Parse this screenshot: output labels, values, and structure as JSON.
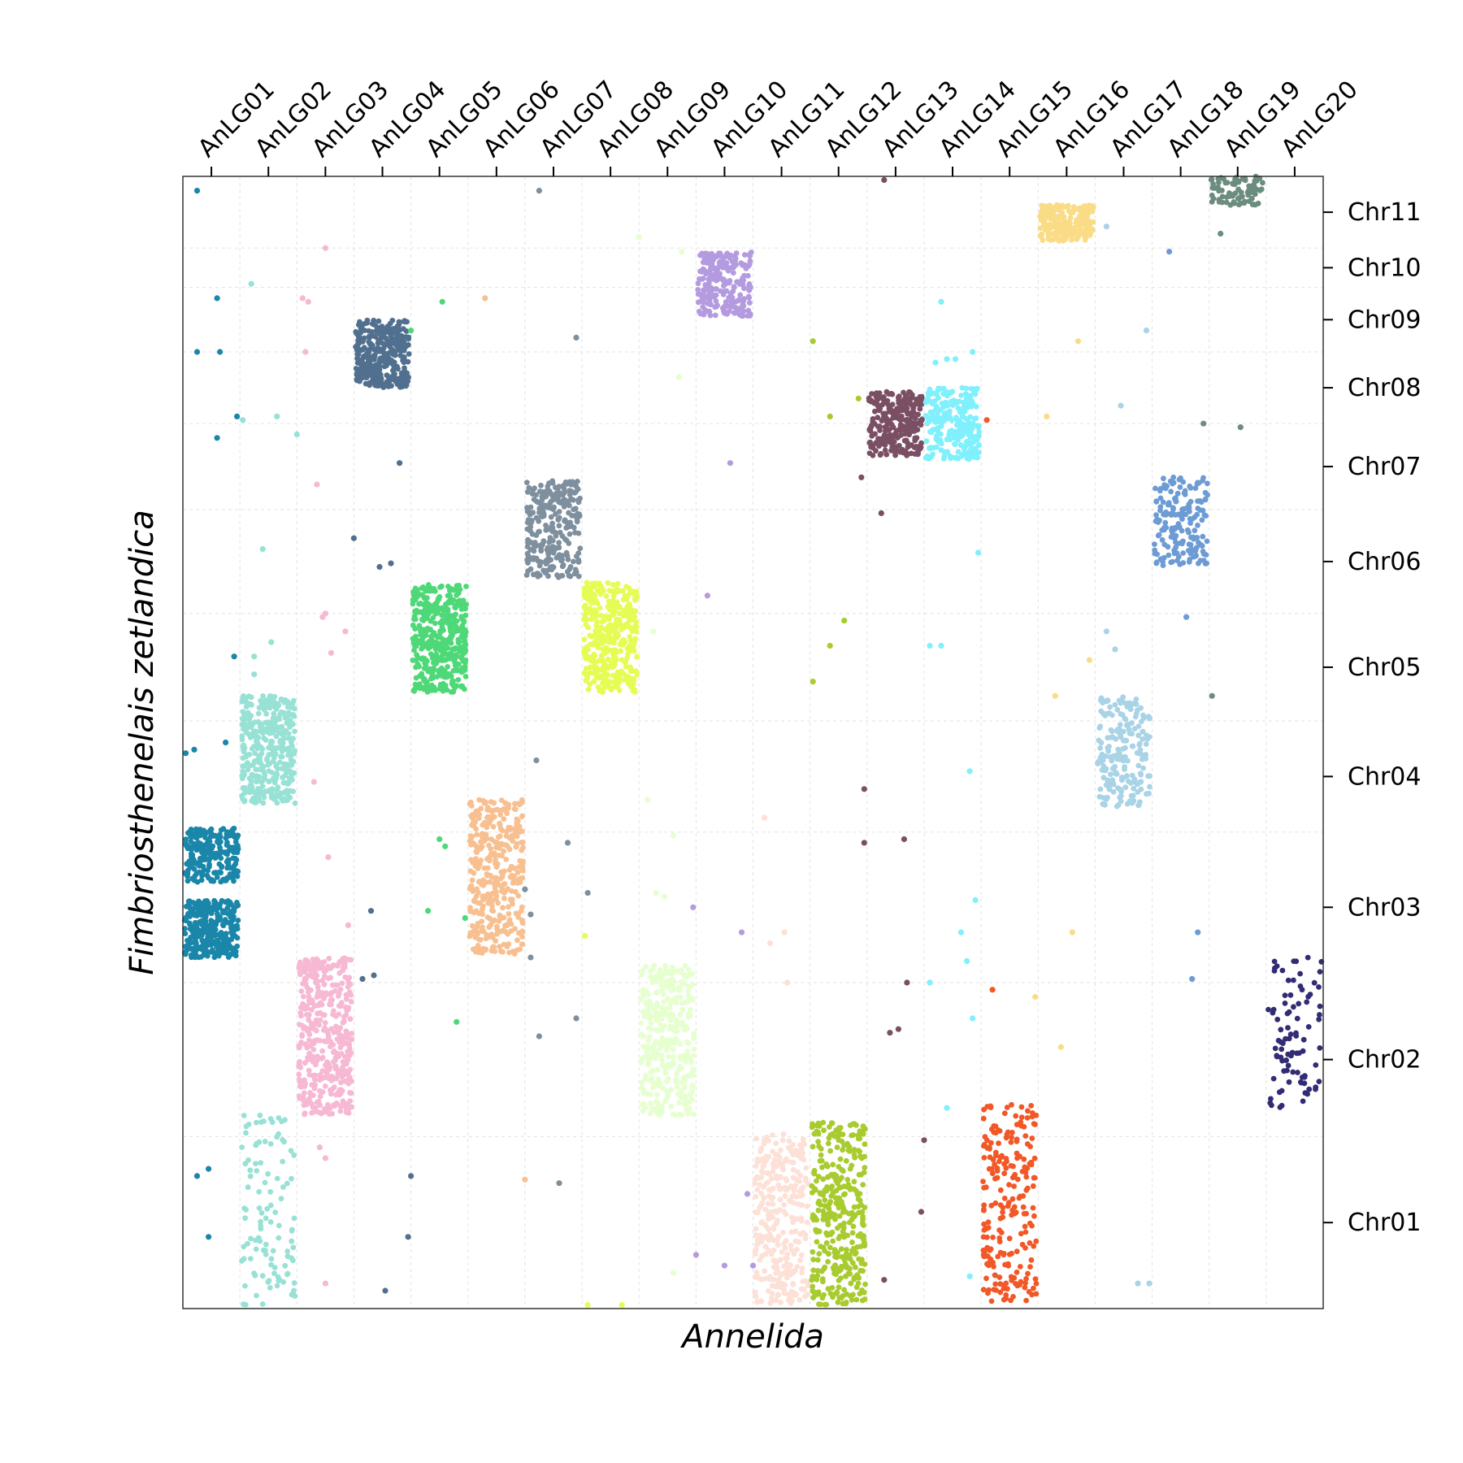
{
  "chart_data": {
    "type": "scatter",
    "title": "",
    "xlabel": "Annelida",
    "ylabel": "Fimbriosthenelais zetlandica",
    "x_axis_position": "top",
    "y_axis_position": "right",
    "grid": true,
    "x_categories": [
      "AnLG01",
      "AnLG02",
      "AnLG03",
      "AnLG04",
      "AnLG05",
      "AnLG06",
      "AnLG07",
      "AnLG08",
      "AnLG09",
      "AnLG10",
      "AnLG11",
      "AnLG12",
      "AnLG13",
      "AnLG14",
      "AnLG15",
      "AnLG16",
      "AnLG17",
      "AnLG18",
      "AnLG19",
      "AnLG20"
    ],
    "y_categories": [
      "Chr01",
      "Chr02",
      "Chr03",
      "Chr04",
      "Chr05",
      "Chr06",
      "Chr07",
      "Chr08",
      "Chr09",
      "Chr10",
      "Chr11"
    ],
    "y_category_spans": [
      {
        "name": "Chr01",
        "from": 0,
        "to": 240
      },
      {
        "name": "Chr02",
        "from": 240,
        "to": 455
      },
      {
        "name": "Chr03",
        "from": 455,
        "to": 665
      },
      {
        "name": "Chr04",
        "from": 665,
        "to": 820
      },
      {
        "name": "Chr05",
        "from": 820,
        "to": 970
      },
      {
        "name": "Chr06",
        "from": 970,
        "to": 1115
      },
      {
        "name": "Chr07",
        "from": 1115,
        "to": 1235
      },
      {
        "name": "Chr08",
        "from": 1235,
        "to": 1335
      },
      {
        "name": "Chr09",
        "from": 1335,
        "to": 1425
      },
      {
        "name": "Chr10",
        "from": 1425,
        "to": 1480
      },
      {
        "name": "Chr11",
        "from": 1480,
        "to": 1580
      }
    ],
    "x_range": [
      0,
      20
    ],
    "y_range": [
      0,
      1580
    ],
    "clusters": [
      {
        "x": "AnLG01",
        "y_from": 490,
        "y_to": 570,
        "n": 300,
        "color": "#1a86a9"
      },
      {
        "x": "AnLG01",
        "y_from": 595,
        "y_to": 670,
        "n": 220,
        "color": "#1a86a9"
      },
      {
        "x": "AnLG02",
        "y_from": 705,
        "y_to": 855,
        "n": 380,
        "color": "#98e1d5"
      },
      {
        "x": "AnLG02",
        "y_from": 5,
        "y_to": 270,
        "n": 110,
        "color": "#98e1d5"
      },
      {
        "x": "AnLG03",
        "y_from": 270,
        "y_to": 490,
        "n": 420,
        "color": "#f7b8d3"
      },
      {
        "x": "AnLG04",
        "y_from": 1285,
        "y_to": 1380,
        "n": 330,
        "color": "#51708f"
      },
      {
        "x": "AnLG05",
        "y_from": 860,
        "y_to": 1010,
        "n": 420,
        "color": "#4ed878"
      },
      {
        "x": "AnLG06",
        "y_from": 495,
        "y_to": 710,
        "n": 380,
        "color": "#f8c091"
      },
      {
        "x": "AnLG07",
        "y_from": 1020,
        "y_to": 1155,
        "n": 260,
        "color": "#7e8f9e"
      },
      {
        "x": "AnLG08",
        "y_from": 860,
        "y_to": 1015,
        "n": 380,
        "color": "#e6fc54"
      },
      {
        "x": "AnLG09",
        "y_from": 270,
        "y_to": 480,
        "n": 330,
        "color": "#e6ffcf"
      },
      {
        "x": "AnLG10",
        "y_from": 1385,
        "y_to": 1475,
        "n": 230,
        "color": "#b49be0"
      },
      {
        "x": "AnLG11",
        "y_from": 5,
        "y_to": 245,
        "n": 300,
        "color": "#fde0d6"
      },
      {
        "x": "AnLG12",
        "y_from": 5,
        "y_to": 260,
        "n": 360,
        "color": "#a8cb2f"
      },
      {
        "x": "AnLG13",
        "y_from": 1190,
        "y_to": 1280,
        "n": 250,
        "color": "#7a4f63"
      },
      {
        "x": "AnLG14",
        "y_from": 1185,
        "y_to": 1285,
        "n": 250,
        "color": "#7ff0fc"
      },
      {
        "x": "AnLG15",
        "y_from": 5,
        "y_to": 285,
        "n": 230,
        "color": "#f25827"
      },
      {
        "x": "AnLG16",
        "y_from": 1490,
        "y_to": 1540,
        "n": 220,
        "color": "#fadc87"
      },
      {
        "x": "AnLG17",
        "y_from": 700,
        "y_to": 855,
        "n": 200,
        "color": "#a9d3e6"
      },
      {
        "x": "AnLG18",
        "y_from": 1035,
        "y_to": 1160,
        "n": 180,
        "color": "#6d9bd4"
      },
      {
        "x": "AnLG19",
        "y_from": 1540,
        "y_to": 1600,
        "n": 120,
        "color": "#6b8c7f"
      },
      {
        "x": "AnLG20",
        "y_from": 275,
        "y_to": 490,
        "n": 90,
        "color": "#312c74"
      }
    ],
    "scattered_points": [
      {
        "x": 0.25,
        "y": 1560,
        "color": "#1a86a9"
      },
      {
        "x": 0.6,
        "y": 1410,
        "color": "#1a86a9"
      },
      {
        "x": 0.25,
        "y": 1335,
        "color": "#1a86a9"
      },
      {
        "x": 0.65,
        "y": 1335,
        "color": "#1a86a9"
      },
      {
        "x": 0.95,
        "y": 1245,
        "color": "#1a86a9"
      },
      {
        "x": 0.6,
        "y": 1215,
        "color": "#1a86a9"
      },
      {
        "x": 0.05,
        "y": 775,
        "color": "#1a86a9"
      },
      {
        "x": 0.2,
        "y": 780,
        "color": "#1a86a9"
      },
      {
        "x": 0.75,
        "y": 790,
        "color": "#1a86a9"
      },
      {
        "x": 0.9,
        "y": 910,
        "color": "#1a86a9"
      },
      {
        "x": 0.25,
        "y": 185,
        "color": "#1a86a9"
      },
      {
        "x": 0.45,
        "y": 195,
        "color": "#1a86a9"
      },
      {
        "x": 0.45,
        "y": 100,
        "color": "#1a86a9"
      },
      {
        "x": 1.6,
        "y": 1585,
        "color": "#98e1d5"
      },
      {
        "x": 1.2,
        "y": 1430,
        "color": "#98e1d5"
      },
      {
        "x": 1.05,
        "y": 1240,
        "color": "#98e1d5"
      },
      {
        "x": 1.65,
        "y": 1245,
        "color": "#98e1d5"
      },
      {
        "x": 2.0,
        "y": 1220,
        "color": "#98e1d5"
      },
      {
        "x": 1.4,
        "y": 1060,
        "color": "#98e1d5"
      },
      {
        "x": 1.25,
        "y": 910,
        "color": "#98e1d5"
      },
      {
        "x": 1.55,
        "y": 930,
        "color": "#98e1d5"
      },
      {
        "x": 1.25,
        "y": 885,
        "color": "#98e1d5"
      },
      {
        "x": 2.5,
        "y": 1480,
        "color": "#f7b8d3"
      },
      {
        "x": 2.1,
        "y": 1410,
        "color": "#f7b8d3"
      },
      {
        "x": 2.2,
        "y": 1405,
        "color": "#f7b8d3"
      },
      {
        "x": 2.15,
        "y": 1335,
        "color": "#f7b8d3"
      },
      {
        "x": 2.35,
        "y": 1150,
        "color": "#f7b8d3"
      },
      {
        "x": 2.5,
        "y": 970,
        "color": "#f7b8d3"
      },
      {
        "x": 2.45,
        "y": 965,
        "color": "#f7b8d3"
      },
      {
        "x": 2.6,
        "y": 915,
        "color": "#f7b8d3"
      },
      {
        "x": 2.85,
        "y": 945,
        "color": "#f7b8d3"
      },
      {
        "x": 2.3,
        "y": 735,
        "color": "#f7b8d3"
      },
      {
        "x": 2.55,
        "y": 630,
        "color": "#f7b8d3"
      },
      {
        "x": 2.9,
        "y": 535,
        "color": "#f7b8d3"
      },
      {
        "x": 2.5,
        "y": 210,
        "color": "#f7b8d3"
      },
      {
        "x": 2.4,
        "y": 225,
        "color": "#f7b8d3"
      },
      {
        "x": 2.5,
        "y": 35,
        "color": "#f7b8d3"
      },
      {
        "x": 3.0,
        "y": 1075,
        "color": "#51708f"
      },
      {
        "x": 3.45,
        "y": 1035,
        "color": "#51708f"
      },
      {
        "x": 3.65,
        "y": 1040,
        "color": "#51708f"
      },
      {
        "x": 3.8,
        "y": 1180,
        "color": "#51708f"
      },
      {
        "x": 3.3,
        "y": 555,
        "color": "#51708f"
      },
      {
        "x": 3.15,
        "y": 460,
        "color": "#51708f"
      },
      {
        "x": 3.35,
        "y": 465,
        "color": "#51708f"
      },
      {
        "x": 4.0,
        "y": 185,
        "color": "#51708f"
      },
      {
        "x": 3.95,
        "y": 100,
        "color": "#51708f"
      },
      {
        "x": 3.55,
        "y": 25,
        "color": "#51708f"
      },
      {
        "x": 4.55,
        "y": 1405,
        "color": "#4ed878"
      },
      {
        "x": 4.0,
        "y": 1365,
        "color": "#4ed878"
      },
      {
        "x": 4.5,
        "y": 655,
        "color": "#4ed878"
      },
      {
        "x": 4.6,
        "y": 645,
        "color": "#4ed878"
      },
      {
        "x": 4.3,
        "y": 555,
        "color": "#4ed878"
      },
      {
        "x": 4.95,
        "y": 545,
        "color": "#4ed878"
      },
      {
        "x": 4.8,
        "y": 400,
        "color": "#4ed878"
      },
      {
        "x": 5.3,
        "y": 1410,
        "color": "#f8c091"
      },
      {
        "x": 6.0,
        "y": 180,
        "color": "#f8c091"
      },
      {
        "x": 6.25,
        "y": 1560,
        "color": "#7e8f9e"
      },
      {
        "x": 6.9,
        "y": 1355,
        "color": "#7e8f9e"
      },
      {
        "x": 6.2,
        "y": 765,
        "color": "#7e8f9e"
      },
      {
        "x": 6.75,
        "y": 650,
        "color": "#7e8f9e"
      },
      {
        "x": 6.0,
        "y": 585,
        "color": "#7e8f9e"
      },
      {
        "x": 7.1,
        "y": 580,
        "color": "#7e8f9e"
      },
      {
        "x": 6.1,
        "y": 550,
        "color": "#7e8f9e"
      },
      {
        "x": 6.1,
        "y": 490,
        "color": "#7e8f9e"
      },
      {
        "x": 6.9,
        "y": 405,
        "color": "#7e8f9e"
      },
      {
        "x": 6.25,
        "y": 380,
        "color": "#7e8f9e"
      },
      {
        "x": 6.6,
        "y": 175,
        "color": "#7e8f9e"
      },
      {
        "x": 7.05,
        "y": 520,
        "color": "#e6fc54"
      },
      {
        "x": 7.1,
        "y": 5,
        "color": "#e6fc54"
      },
      {
        "x": 7.7,
        "y": 5,
        "color": "#e6fc54"
      },
      {
        "x": 8.05,
        "y": 1585,
        "color": "#e6fc54"
      },
      {
        "x": 8.0,
        "y": 1495,
        "color": "#e6ffcf"
      },
      {
        "x": 8.75,
        "y": 1475,
        "color": "#e6ffcf"
      },
      {
        "x": 8.7,
        "y": 1300,
        "color": "#e6ffcf"
      },
      {
        "x": 8.25,
        "y": 945,
        "color": "#e6ffcf"
      },
      {
        "x": 8.15,
        "y": 710,
        "color": "#e6ffcf"
      },
      {
        "x": 8.45,
        "y": 575,
        "color": "#e6ffcf"
      },
      {
        "x": 8.3,
        "y": 580,
        "color": "#e6ffcf"
      },
      {
        "x": 8.6,
        "y": 660,
        "color": "#e6ffcf"
      },
      {
        "x": 8.6,
        "y": 50,
        "color": "#e6ffcf"
      },
      {
        "x": 9.2,
        "y": 995,
        "color": "#b49be0"
      },
      {
        "x": 9.6,
        "y": 1180,
        "color": "#b49be0"
      },
      {
        "x": 8.95,
        "y": 560,
        "color": "#b49be0"
      },
      {
        "x": 9.8,
        "y": 525,
        "color": "#b49be0"
      },
      {
        "x": 9.9,
        "y": 160,
        "color": "#b49be0"
      },
      {
        "x": 9.0,
        "y": 75,
        "color": "#b49be0"
      },
      {
        "x": 9.5,
        "y": 60,
        "color": "#b49be0"
      },
      {
        "x": 10.0,
        "y": 60,
        "color": "#b49be0"
      },
      {
        "x": 10.2,
        "y": 685,
        "color": "#fde0d6"
      },
      {
        "x": 10.3,
        "y": 510,
        "color": "#fde0d6"
      },
      {
        "x": 10.55,
        "y": 525,
        "color": "#fde0d6"
      },
      {
        "x": 10.6,
        "y": 455,
        "color": "#fde0d6"
      },
      {
        "x": 11.05,
        "y": 1350,
        "color": "#a8cb2f"
      },
      {
        "x": 11.05,
        "y": 875,
        "color": "#a8cb2f"
      },
      {
        "x": 11.35,
        "y": 1245,
        "color": "#a8cb2f"
      },
      {
        "x": 11.6,
        "y": 960,
        "color": "#a8cb2f"
      },
      {
        "x": 11.35,
        "y": 925,
        "color": "#a8cb2f"
      },
      {
        "x": 11.85,
        "y": 1270,
        "color": "#a8cb2f"
      },
      {
        "x": 12.3,
        "y": 1575,
        "color": "#7a4f63"
      },
      {
        "x": 11.9,
        "y": 1160,
        "color": "#7a4f63"
      },
      {
        "x": 12.25,
        "y": 1110,
        "color": "#7a4f63"
      },
      {
        "x": 11.95,
        "y": 725,
        "color": "#7a4f63"
      },
      {
        "x": 11.95,
        "y": 650,
        "color": "#7a4f63"
      },
      {
        "x": 12.65,
        "y": 655,
        "color": "#7a4f63"
      },
      {
        "x": 12.7,
        "y": 455,
        "color": "#7a4f63"
      },
      {
        "x": 12.4,
        "y": 385,
        "color": "#7a4f63"
      },
      {
        "x": 12.55,
        "y": 390,
        "color": "#7a4f63"
      },
      {
        "x": 13.0,
        "y": 235,
        "color": "#7a4f63"
      },
      {
        "x": 12.95,
        "y": 135,
        "color": "#7a4f63"
      },
      {
        "x": 12.3,
        "y": 40,
        "color": "#7a4f63"
      },
      {
        "x": 13.3,
        "y": 1405,
        "color": "#7ff0fc"
      },
      {
        "x": 13.2,
        "y": 1320,
        "color": "#7ff0fc"
      },
      {
        "x": 13.4,
        "y": 1325,
        "color": "#7ff0fc"
      },
      {
        "x": 13.55,
        "y": 1325,
        "color": "#7ff0fc"
      },
      {
        "x": 13.85,
        "y": 1335,
        "color": "#7ff0fc"
      },
      {
        "x": 13.95,
        "y": 1055,
        "color": "#7ff0fc"
      },
      {
        "x": 13.1,
        "y": 925,
        "color": "#7ff0fc"
      },
      {
        "x": 13.3,
        "y": 925,
        "color": "#7ff0fc"
      },
      {
        "x": 13.8,
        "y": 750,
        "color": "#7ff0fc"
      },
      {
        "x": 13.9,
        "y": 570,
        "color": "#7ff0fc"
      },
      {
        "x": 13.65,
        "y": 525,
        "color": "#7ff0fc"
      },
      {
        "x": 13.75,
        "y": 485,
        "color": "#7ff0fc"
      },
      {
        "x": 13.1,
        "y": 455,
        "color": "#7ff0fc"
      },
      {
        "x": 13.85,
        "y": 405,
        "color": "#7ff0fc"
      },
      {
        "x": 13.4,
        "y": 280,
        "color": "#7ff0fc"
      },
      {
        "x": 13.8,
        "y": 45,
        "color": "#7ff0fc"
      },
      {
        "x": 14.1,
        "y": 1240,
        "color": "#f25827"
      },
      {
        "x": 14.2,
        "y": 445,
        "color": "#f25827"
      },
      {
        "x": 15.15,
        "y": 1245,
        "color": "#fadc87"
      },
      {
        "x": 15.7,
        "y": 1350,
        "color": "#fadc87"
      },
      {
        "x": 15.3,
        "y": 855,
        "color": "#fadc87"
      },
      {
        "x": 15.9,
        "y": 905,
        "color": "#fadc87"
      },
      {
        "x": 15.6,
        "y": 525,
        "color": "#fadc87"
      },
      {
        "x": 14.95,
        "y": 435,
        "color": "#fadc87"
      },
      {
        "x": 15.4,
        "y": 365,
        "color": "#fadc87"
      },
      {
        "x": 16.2,
        "y": 1510,
        "color": "#a9d3e6"
      },
      {
        "x": 16.45,
        "y": 1260,
        "color": "#a9d3e6"
      },
      {
        "x": 16.9,
        "y": 1365,
        "color": "#a9d3e6"
      },
      {
        "x": 16.2,
        "y": 945,
        "color": "#a9d3e6"
      },
      {
        "x": 16.35,
        "y": 920,
        "color": "#a9d3e6"
      },
      {
        "x": 16.75,
        "y": 35,
        "color": "#a9d3e6"
      },
      {
        "x": 16.95,
        "y": 35,
        "color": "#a9d3e6"
      },
      {
        "x": 17.3,
        "y": 1475,
        "color": "#6d9bd4"
      },
      {
        "x": 17.6,
        "y": 965,
        "color": "#6d9bd4"
      },
      {
        "x": 17.8,
        "y": 525,
        "color": "#6d9bd4"
      },
      {
        "x": 17.7,
        "y": 460,
        "color": "#6d9bd4"
      },
      {
        "x": 18.2,
        "y": 1500,
        "color": "#6b8c7f"
      },
      {
        "x": 17.9,
        "y": 1235,
        "color": "#6b8c7f"
      },
      {
        "x": 18.55,
        "y": 1230,
        "color": "#6b8c7f"
      },
      {
        "x": 18.05,
        "y": 855,
        "color": "#6b8c7f"
      }
    ]
  }
}
